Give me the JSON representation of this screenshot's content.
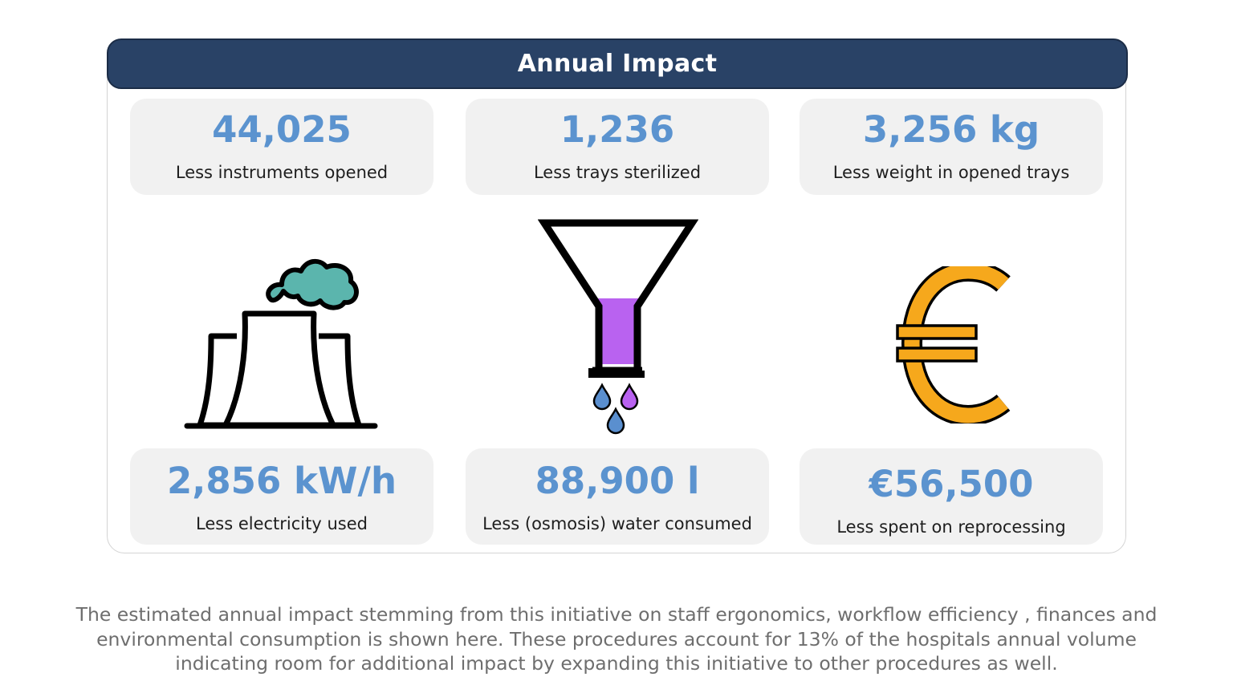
{
  "header": {
    "title": "Annual Impact"
  },
  "metrics_top": [
    {
      "value": "44,025",
      "label": "Less instruments opened"
    },
    {
      "value": "1,236",
      "label": "Less trays sterilized"
    },
    {
      "value": "3,256 kg",
      "label": "Less weight in opened trays"
    }
  ],
  "metrics_bottom": [
    {
      "value": "2,856 kW/h",
      "label": "Less electricity used"
    },
    {
      "value": "88,900 l",
      "label": "Less (osmosis) water consumed"
    },
    {
      "value": "€56,500",
      "label": "Less spent on reprocessing"
    }
  ],
  "icons": [
    "power-plant-icon",
    "funnel-water-icon",
    "euro-icon"
  ],
  "colors": {
    "header_bg": "#294266",
    "value_blue": "#5b93cf",
    "card_bg": "#f1f1f1",
    "smoke_teal": "#5bb5ad",
    "liquid_purple": "#b962f0",
    "drop_blue": "#5a8fcf",
    "euro_orange": "#f6a81c"
  },
  "caption": {
    "line1": "The estimated annual impact stemming from this initiative on staff ergonomics, workflow efficiency , finances and",
    "line2": "environmental consumption is shown here. These procedures account for 13% of the hospitals annual volume",
    "line3": "indicating room for additional impact by expanding this initiative to other procedures as well."
  }
}
